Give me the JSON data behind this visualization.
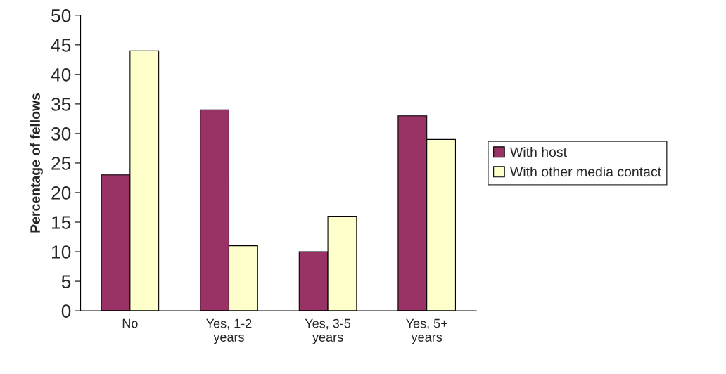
{
  "chart_data": {
    "type": "bar",
    "ylabel": "Percentage of fellows",
    "categories": [
      "No",
      "Yes, 1-2 years",
      "Yes, 3-5 years",
      "Yes, 5+ years"
    ],
    "series": [
      {
        "name": "With host",
        "color": "#993366",
        "values": [
          23,
          34,
          10,
          33
        ]
      },
      {
        "name": "With other media contact",
        "color": "#ffffcc",
        "values": [
          44,
          11,
          16,
          29
        ]
      }
    ],
    "ylim": [
      0,
      50
    ],
    "yticks": [
      0,
      5,
      10,
      15,
      20,
      25,
      30,
      35,
      40,
      45,
      50
    ],
    "grid": false,
    "legend": "right"
  }
}
